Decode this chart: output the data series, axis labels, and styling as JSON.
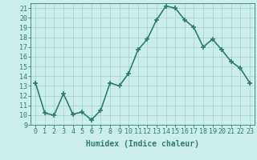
{
  "x": [
    0,
    1,
    2,
    3,
    4,
    5,
    6,
    7,
    8,
    9,
    10,
    11,
    12,
    13,
    14,
    15,
    16,
    17,
    18,
    19,
    20,
    21,
    22,
    23
  ],
  "y": [
    13.3,
    10.2,
    10.0,
    12.2,
    10.1,
    10.3,
    9.5,
    10.5,
    13.3,
    13.0,
    14.3,
    16.7,
    17.8,
    19.8,
    21.2,
    21.0,
    19.8,
    19.0,
    17.0,
    17.8,
    16.7,
    15.5,
    14.8,
    13.3
  ],
  "xlabel": "Humidex (Indice chaleur)",
  "line_color": "#2e7d6e",
  "marker": "+",
  "marker_size": 4,
  "bg_color": "#cceee8",
  "grid_color": "#aad4cc",
  "xlim": [
    -0.5,
    23.5
  ],
  "ylim": [
    9,
    21.5
  ],
  "yticks": [
    9,
    10,
    11,
    12,
    13,
    14,
    15,
    16,
    17,
    18,
    19,
    20,
    21
  ],
  "xtick_labels": [
    "0",
    "1",
    "2",
    "3",
    "4",
    "5",
    "6",
    "7",
    "8",
    "9",
    "10",
    "11",
    "12",
    "13",
    "14",
    "15",
    "16",
    "17",
    "18",
    "19",
    "20",
    "21",
    "22",
    "23"
  ],
  "xlabel_fontsize": 7,
  "tick_fontsize": 6,
  "line_width": 1.2
}
